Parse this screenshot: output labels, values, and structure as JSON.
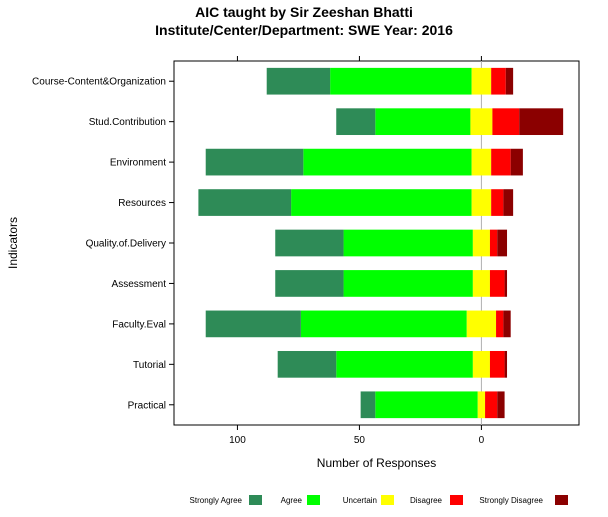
{
  "chart_data": {
    "type": "bar",
    "orientation": "horizontal-diverging-stacked",
    "title": "AIC taught by Sir Zeeshan Bhatti",
    "subtitle": "Institute/Center/Department: SWE Year: 2016",
    "xlabel": "Number of Responses",
    "ylabel": "Indicators",
    "x_ticks": [
      "100",
      "50",
      "0"
    ],
    "x_tick_values": [
      -100,
      -50,
      0
    ],
    "xlim": [
      -126,
      40
    ],
    "grid": false,
    "legend_placement": "bottom",
    "categories": [
      "Course-Content&Organization",
      "Stud.Contribution",
      "Environment",
      "Resources",
      "Quality.of.Delivery",
      "Assessment",
      "Faculty.Eval",
      "Tutorial",
      "Practical"
    ],
    "series": [
      {
        "name": "Strongly Agree",
        "color": "#2E8B57",
        "values": [
          26,
          16,
          40,
          38,
          28,
          28,
          39,
          24,
          6
        ]
      },
      {
        "name": "Agree",
        "color": "#00FF00",
        "values": [
          58,
          39,
          69,
          74,
          53,
          53,
          68,
          56,
          42
        ]
      },
      {
        "name": "Uncertain",
        "color": "#FFFF00",
        "values": [
          8,
          9,
          8,
          8,
          7,
          7,
          12,
          7,
          3
        ]
      },
      {
        "name": "Disagree",
        "color": "#FF0000",
        "values": [
          6,
          11,
          8,
          5,
          3,
          6,
          3,
          6,
          5
        ]
      },
      {
        "name": "Strongly Disagree",
        "color": "#8B0000",
        "values": [
          3,
          18,
          5,
          4,
          4,
          1,
          3,
          1,
          3
        ]
      }
    ]
  }
}
